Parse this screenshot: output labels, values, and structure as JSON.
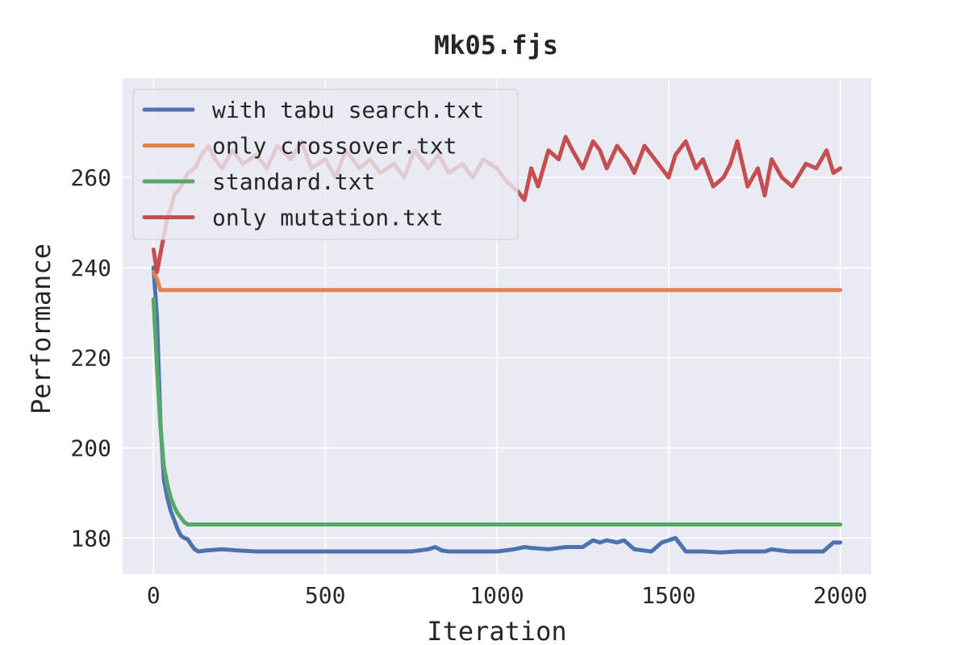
{
  "chart_data": {
    "type": "line",
    "title": "Mk05.fjs",
    "xlabel": "Iteration",
    "ylabel": "Performance",
    "xlim": [
      -90,
      2090
    ],
    "ylim": [
      172,
      282
    ],
    "xticks": [
      0,
      500,
      1000,
      1500,
      2000
    ],
    "yticks": [
      180,
      200,
      220,
      240,
      260
    ],
    "grid": true,
    "legend_position": "top-left",
    "background_color": "#eaeaf2",
    "series": [
      {
        "name": "with tabu search.txt",
        "color": "#4c72b0",
        "x": [
          0,
          10,
          20,
          30,
          40,
          50,
          60,
          70,
          80,
          90,
          100,
          110,
          120,
          130,
          150,
          200,
          250,
          300,
          350,
          400,
          450,
          500,
          550,
          600,
          650,
          700,
          750,
          800,
          820,
          840,
          860,
          900,
          950,
          1000,
          1050,
          1080,
          1100,
          1150,
          1200,
          1250,
          1280,
          1300,
          1320,
          1350,
          1370,
          1400,
          1450,
          1480,
          1500,
          1520,
          1550,
          1600,
          1650,
          1700,
          1750,
          1780,
          1800,
          1850,
          1900,
          1950,
          1980,
          2000
        ],
        "y": [
          240,
          229,
          206,
          193,
          189,
          186,
          184,
          182,
          180.5,
          180,
          179.7,
          178.5,
          177.5,
          177,
          177.2,
          177.5,
          177.2,
          177,
          177,
          177,
          177,
          177,
          177,
          177,
          177,
          177,
          177,
          177.5,
          178,
          177.2,
          177,
          177,
          177,
          177,
          177.5,
          178,
          177.8,
          177.5,
          178,
          178,
          179.5,
          179,
          179.5,
          179,
          179.5,
          177.5,
          177,
          179,
          179.5,
          180,
          177,
          177,
          176.8,
          177,
          177,
          177,
          177.5,
          177,
          177,
          177,
          179,
          179
        ]
      },
      {
        "name": "only crossover.txt",
        "color": "#dd8452",
        "x": [
          0,
          10,
          20,
          2000
        ],
        "y": [
          239,
          237.5,
          235,
          235
        ]
      },
      {
        "name": "standard.txt",
        "color": "#55a868",
        "x": [
          0,
          10,
          20,
          30,
          40,
          50,
          60,
          70,
          80,
          90,
          100,
          2000
        ],
        "y": [
          233,
          218,
          205,
          196,
          192,
          189,
          187,
          185.5,
          184.5,
          183.5,
          183,
          183
        ]
      },
      {
        "name": "only mutation.txt",
        "color": "#c44e52",
        "x": [
          0,
          10,
          20,
          30,
          40,
          50,
          60,
          80,
          100,
          120,
          140,
          160,
          180,
          200,
          230,
          260,
          300,
          330,
          360,
          400,
          430,
          460,
          500,
          530,
          560,
          600,
          630,
          660,
          700,
          730,
          760,
          800,
          830,
          860,
          900,
          930,
          960,
          1000,
          1030,
          1060,
          1080,
          1100,
          1120,
          1150,
          1180,
          1200,
          1220,
          1250,
          1280,
          1300,
          1320,
          1350,
          1380,
          1400,
          1430,
          1460,
          1500,
          1520,
          1550,
          1580,
          1600,
          1630,
          1660,
          1680,
          1700,
          1730,
          1760,
          1780,
          1800,
          1830,
          1860,
          1900,
          1930,
          1960,
          1980,
          2000
        ],
        "y": [
          244,
          239,
          243,
          247,
          251,
          253,
          256,
          258,
          261,
          262,
          265,
          267,
          264,
          262,
          266,
          263,
          265,
          262,
          267,
          264,
          268,
          262,
          264,
          260,
          266,
          262,
          264,
          261,
          263,
          260,
          266,
          262,
          265,
          261,
          263,
          260,
          264,
          262,
          259,
          257,
          255,
          262,
          258,
          266,
          264,
          269,
          266,
          262,
          268,
          266,
          262,
          267,
          264,
          261,
          267,
          264,
          260,
          265,
          268,
          262,
          264,
          258,
          260,
          263,
          268,
          258,
          262,
          256,
          264,
          260,
          258,
          263,
          262,
          266,
          261,
          262
        ]
      }
    ]
  }
}
